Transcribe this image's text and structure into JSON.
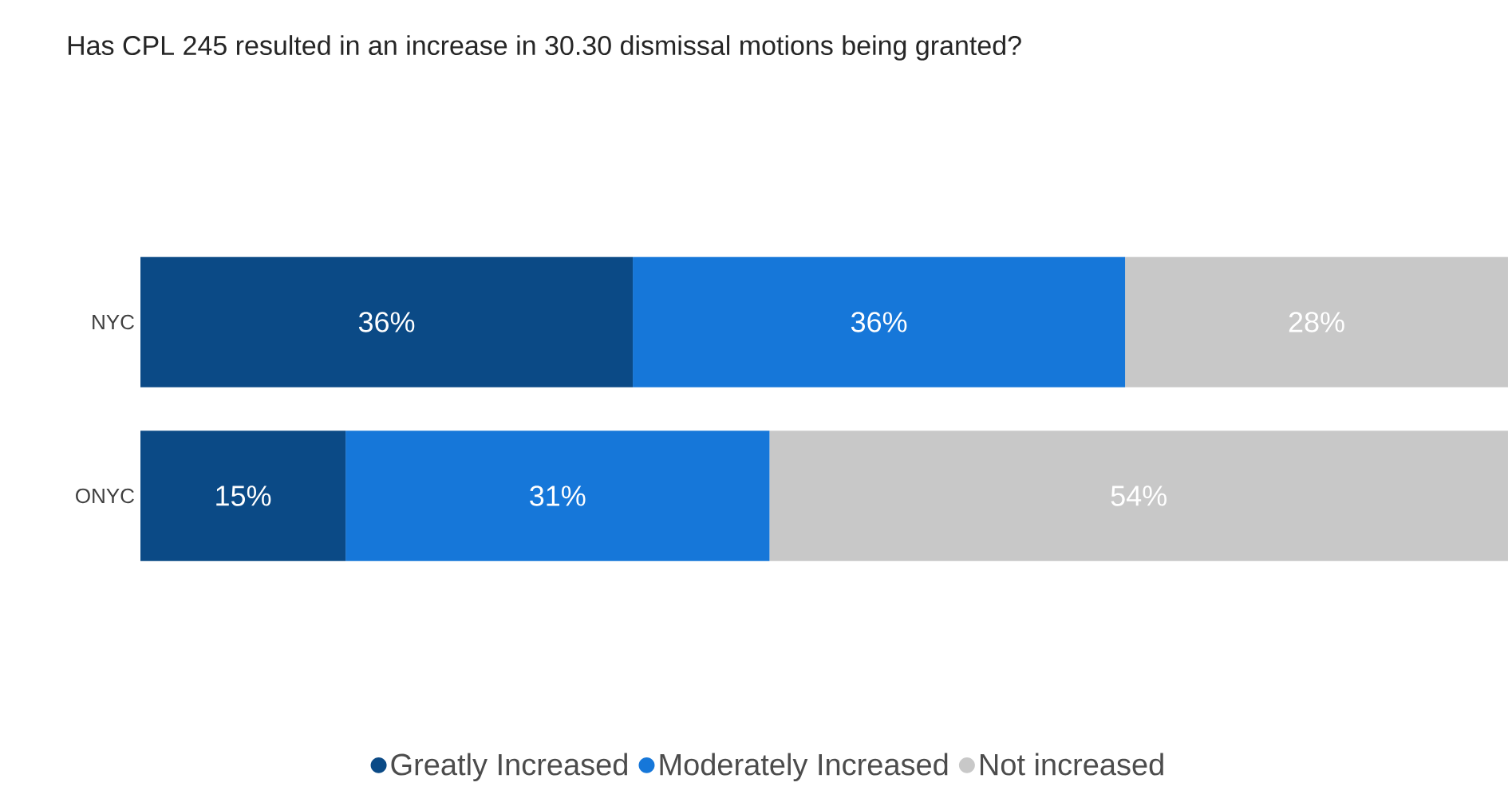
{
  "chart_data": {
    "type": "bar",
    "orientation": "horizontal",
    "stacked": true,
    "title": "Has CPL 245 resulted in an increase in 30.30 dismissal motions being granted?",
    "categories": [
      "NYC",
      "ONYC"
    ],
    "tick_labels": "y",
    "legend": "bottom",
    "series": [
      {
        "name": "Greatly Increased",
        "color": "#0b4a86",
        "values": [
          36,
          15
        ],
        "value_labels": [
          "36%",
          "15%"
        ]
      },
      {
        "name": "Moderately Increased",
        "color": "#1677d9",
        "values": [
          36,
          31
        ],
        "value_labels": [
          "36%",
          "31%"
        ]
      },
      {
        "name": "Not increased",
        "color": "#c8c8c8",
        "values": [
          28,
          54
        ],
        "value_labels": [
          "28%",
          "54%"
        ]
      }
    ]
  }
}
